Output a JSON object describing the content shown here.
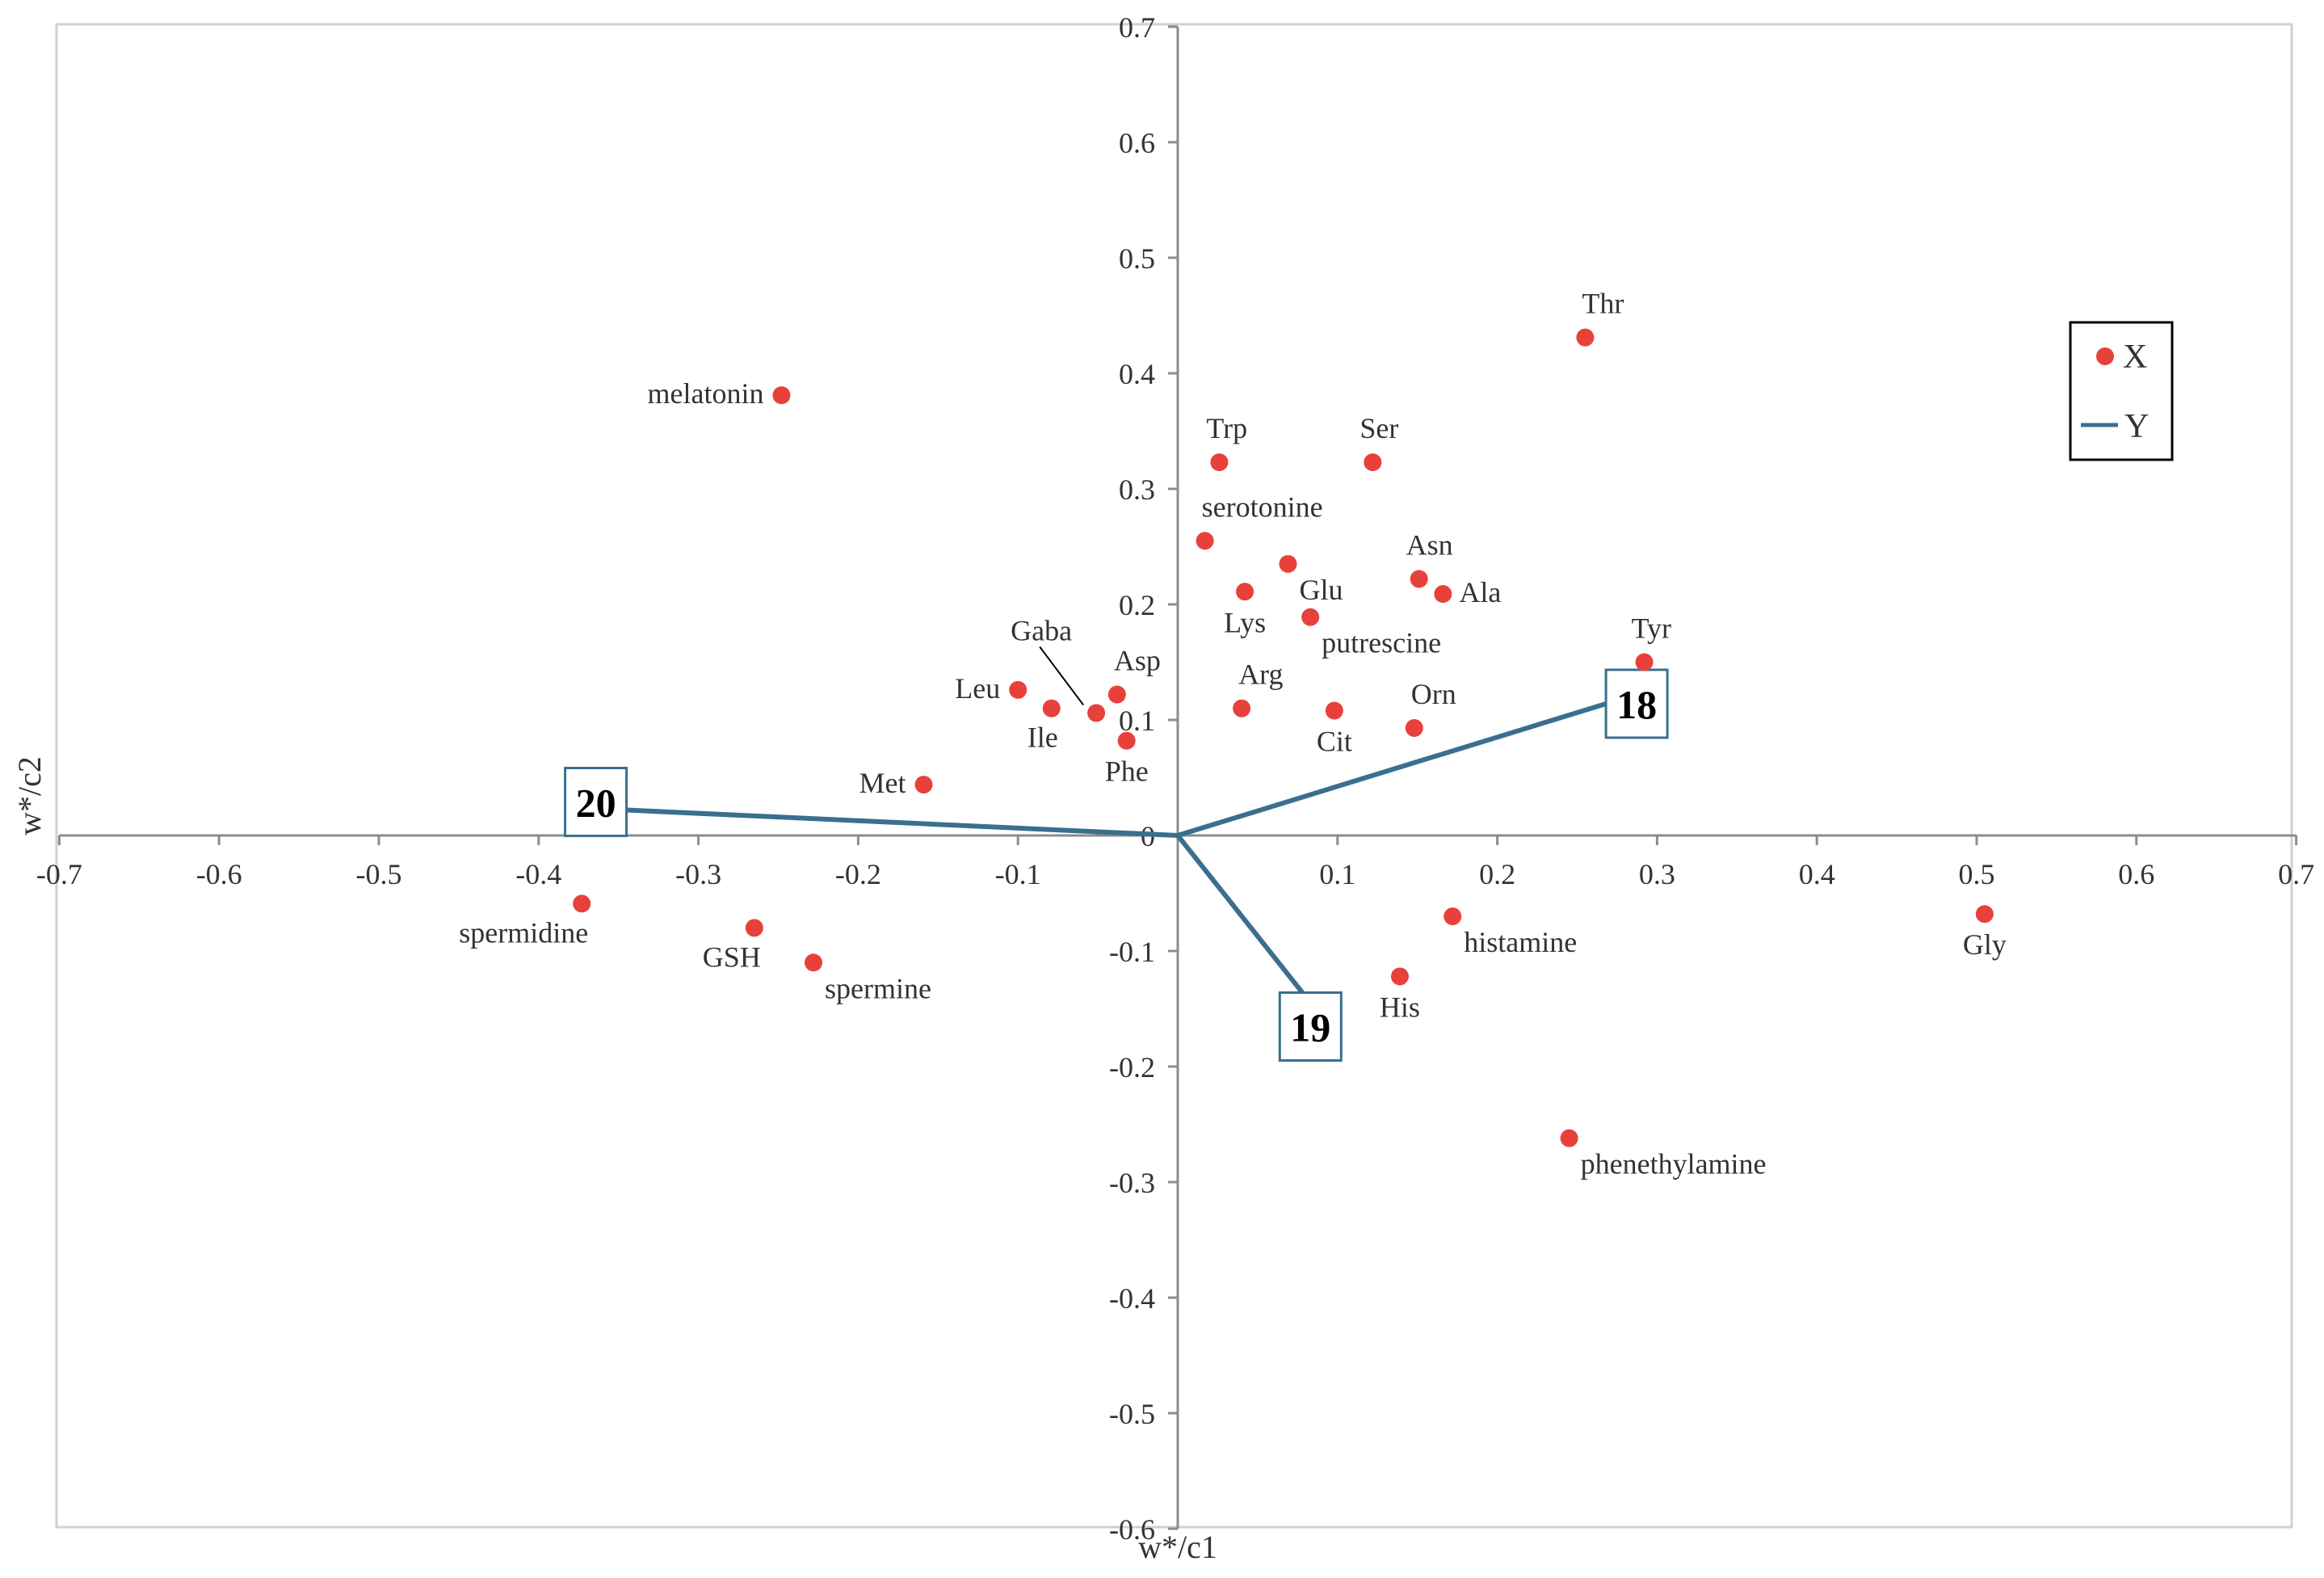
{
  "chart_data": {
    "type": "scatter",
    "xlabel": "w*/c1",
    "ylabel": "w*/c2",
    "xlim": [
      -0.7,
      0.7
    ],
    "ylim": [
      -0.6,
      0.7
    ],
    "x_ticks": [
      -0.7,
      -0.6,
      -0.5,
      -0.4,
      -0.3,
      -0.2,
      -0.1,
      0,
      0.1,
      0.2,
      0.3,
      0.4,
      0.5,
      0.6,
      0.7
    ],
    "y_ticks": [
      -0.6,
      -0.5,
      -0.4,
      -0.3,
      -0.2,
      -0.1,
      0,
      0.1,
      0.2,
      0.3,
      0.4,
      0.5,
      0.6,
      0.7
    ],
    "grid": false,
    "legend": {
      "position": "top-right",
      "entries": [
        {
          "name": "X",
          "marker": "circle",
          "color": "#e8413c"
        },
        {
          "name": "Y",
          "marker": "line",
          "color": "#3a6f8f"
        }
      ]
    },
    "series": [
      {
        "name": "X",
        "color": "#e8413c",
        "points": [
          {
            "label": "melatonin",
            "x": -0.248,
            "y": 0.381,
            "label_anchor": "w"
          },
          {
            "label": "Thr",
            "x": 0.255,
            "y": 0.431,
            "label_anchor": "ne"
          },
          {
            "label": "Trp",
            "x": 0.026,
            "y": 0.323,
            "label_anchor": "n"
          },
          {
            "label": "Ser",
            "x": 0.122,
            "y": 0.323,
            "label_anchor": "n"
          },
          {
            "label": "serotonine",
            "x": 0.017,
            "y": 0.255,
            "label_anchor": "ne"
          },
          {
            "label": "Glu",
            "x": 0.069,
            "y": 0.235,
            "label_anchor": "se"
          },
          {
            "label": "Asn",
            "x": 0.151,
            "y": 0.222,
            "label_anchor": "n"
          },
          {
            "label": "Lys",
            "x": 0.042,
            "y": 0.211,
            "label_anchor": "s"
          },
          {
            "label": "Ala",
            "x": 0.166,
            "y": 0.209,
            "label_anchor": "e"
          },
          {
            "label": "putrescine",
            "x": 0.083,
            "y": 0.189,
            "label_anchor": "se"
          },
          {
            "label": "Tyr",
            "x": 0.292,
            "y": 0.15,
            "label_anchor": "n"
          },
          {
            "label": "Leu",
            "x": -0.1,
            "y": 0.126,
            "label_anchor": "w"
          },
          {
            "label": "Asp",
            "x": -0.038,
            "y": 0.122,
            "label_anchor": "ne"
          },
          {
            "label": "Ile",
            "x": -0.079,
            "y": 0.11,
            "label_anchor": "sw"
          },
          {
            "label": "Arg",
            "x": 0.04,
            "y": 0.11,
            "label_anchor": "ne"
          },
          {
            "label": "Cit",
            "x": 0.098,
            "y": 0.108,
            "label_anchor": "s"
          },
          {
            "label": "Gaba",
            "x": -0.051,
            "y": 0.106,
            "label_anchor": "leader"
          },
          {
            "label": "Orn",
            "x": 0.148,
            "y": 0.093,
            "label_anchor": "ne"
          },
          {
            "label": "Phe",
            "x": -0.032,
            "y": 0.082,
            "label_anchor": "s"
          },
          {
            "label": "Met",
            "x": -0.159,
            "y": 0.044,
            "label_anchor": "w"
          },
          {
            "label": "spermidine",
            "x": -0.373,
            "y": -0.059,
            "label_anchor": "sw"
          },
          {
            "label": "histamine",
            "x": 0.172,
            "y": -0.07,
            "label_anchor": "se"
          },
          {
            "label": "Gly",
            "x": 0.505,
            "y": -0.068,
            "label_anchor": "s"
          },
          {
            "label": "GSH",
            "x": -0.265,
            "y": -0.08,
            "label_anchor": "sw"
          },
          {
            "label": "spermine",
            "x": -0.228,
            "y": -0.11,
            "label_anchor": "se"
          },
          {
            "label": "His",
            "x": 0.139,
            "y": -0.122,
            "label_anchor": "s"
          },
          {
            "label": "phenethylamine",
            "x": 0.245,
            "y": -0.262,
            "label_anchor": "se"
          }
        ]
      },
      {
        "name": "Y",
        "color": "#3a6f8f",
        "vectors": [
          {
            "label": "18",
            "x": 0.268,
            "y": 0.114
          },
          {
            "label": "19",
            "x": 0.078,
            "y": -0.136
          },
          {
            "label": "20",
            "x": -0.345,
            "y": 0.022
          }
        ]
      }
    ]
  }
}
